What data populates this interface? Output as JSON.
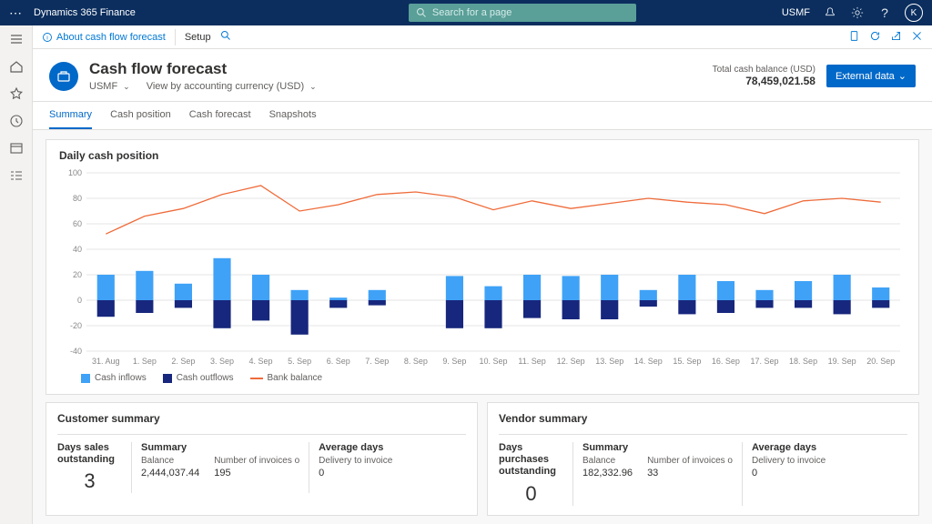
{
  "header": {
    "app_title": "Dynamics 365 Finance",
    "search_placeholder": "Search for a page",
    "company": "USMF",
    "avatar_initial": "K"
  },
  "action_bar": {
    "about": "About cash flow forecast",
    "setup": "Setup"
  },
  "page": {
    "title": "Cash flow forecast",
    "entity": "USMF",
    "view_by": "View by accounting currency (USD)",
    "balance_label": "Total cash balance (USD)",
    "balance_value": "78,459,021.58",
    "external_btn": "External data"
  },
  "tabs": [
    "Summary",
    "Cash position",
    "Cash forecast",
    "Snapshots"
  ],
  "chart": {
    "title": "Daily cash position",
    "type": "combo-bar-line",
    "ylim": [
      -40,
      100
    ],
    "ytick_step": 20,
    "yticks": [
      -40,
      -20,
      0,
      20,
      40,
      60,
      80,
      100
    ],
    "categories": [
      "31. Aug",
      "1. Sep",
      "2. Sep",
      "3. Sep",
      "4. Sep",
      "5. Sep",
      "6. Sep",
      "7. Sep",
      "8. Sep",
      "9. Sep",
      "10. Sep",
      "11. Sep",
      "12. Sep",
      "13. Sep",
      "14. Sep",
      "15. Sep",
      "16. Sep",
      "17. Sep",
      "18. Sep",
      "19. Sep",
      "20. Sep"
    ],
    "inflows": [
      20,
      23,
      13,
      33,
      20,
      8,
      2,
      8,
      0,
      19,
      11,
      20,
      19,
      20,
      8,
      20,
      15,
      8,
      15,
      20,
      10
    ],
    "outflows": [
      -13,
      -10,
      -6,
      -22,
      -16,
      -27,
      -6,
      -4,
      0,
      -22,
      -22,
      -14,
      -15,
      -15,
      -5,
      -11,
      -10,
      -6,
      -6,
      -11,
      -6
    ],
    "bank_balance": [
      52,
      66,
      72,
      83,
      90,
      70,
      75,
      83,
      85,
      81,
      71,
      78,
      72,
      76,
      80,
      77,
      75,
      68,
      78,
      80,
      77
    ],
    "colors": {
      "inflows": "#3fa2f7",
      "outflows": "#17277d",
      "bank_balance": "#ef6b3a",
      "grid": "#e6e6e6",
      "axis_text": "#888888",
      "background": "#ffffff"
    },
    "bar_width_ratio": 0.45,
    "label_fontsize": 9,
    "legend": {
      "inflows": "Cash inflows",
      "outflows": "Cash outflows",
      "bank_balance": "Bank balance"
    }
  },
  "customer_summary": {
    "title": "Customer summary",
    "dso_label": "Days sales outstanding",
    "dso_value": "3",
    "summary_label": "Summary",
    "balance_label": "Balance",
    "balance_value": "2,444,037.44",
    "invoices_label": "Number of invoices o",
    "invoices_value": "195",
    "avg_label": "Average days",
    "delivery_label": "Delivery to invoice",
    "delivery_value": "0"
  },
  "vendor_summary": {
    "title": "Vendor summary",
    "dpo_label": "Days purchases outstanding",
    "dpo_value": "0",
    "summary_label": "Summary",
    "balance_label": "Balance",
    "balance_value": "182,332.96",
    "invoices_label": "Number of invoices o",
    "invoices_value": "33",
    "avg_label": "Average days",
    "delivery_label": "Delivery to invoice",
    "delivery_value": "0"
  }
}
